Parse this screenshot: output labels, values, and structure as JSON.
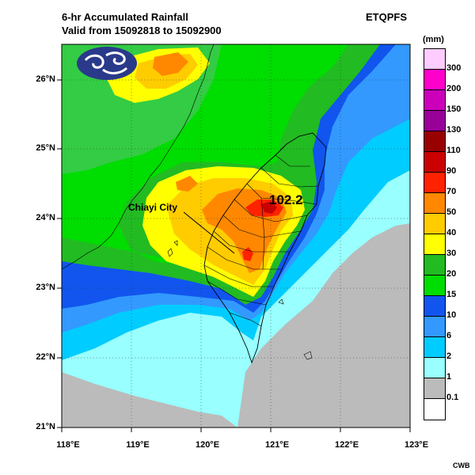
{
  "header": {
    "title_line1": "6-hr Accumulated Rainfall",
    "title_line2": "Valid from 15092818 to 15092900",
    "model": "ETQPFS"
  },
  "legend": {
    "unit": "(mm)",
    "levels": [
      "300",
      "200",
      "150",
      "130",
      "110",
      "90",
      "70",
      "50",
      "40",
      "30",
      "20",
      "15",
      "10",
      "6",
      "2",
      "1",
      "0.1"
    ],
    "colors": [
      "#ffccff",
      "#ff00cc",
      "#cc00bb",
      "#990099",
      "#990000",
      "#cc0000",
      "#ff2200",
      "#ff8800",
      "#ffcc00",
      "#ffff00",
      "#22bb22",
      "#00dd00",
      "#1155ee",
      "#3399ff",
      "#00ccff",
      "#99ffff",
      "#bbbbbb",
      "#ffffff"
    ]
  },
  "axes": {
    "lat_labels": [
      "26°N",
      "25°N",
      "24°N",
      "23°N",
      "22°N",
      "21°N"
    ],
    "lon_labels": [
      "118°E",
      "119°E",
      "120°E",
      "121°E",
      "122°E",
      "123°E"
    ]
  },
  "annotations": {
    "city_label": "Chiayi City",
    "max_value": "102.2"
  },
  "footer": {
    "credit": "CWB"
  }
}
